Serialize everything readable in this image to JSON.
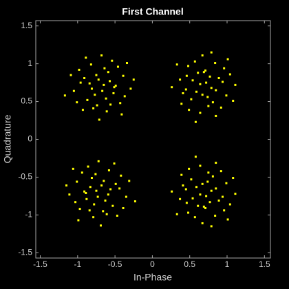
{
  "chart_data": {
    "type": "scatter",
    "title": "First Channel",
    "x_label": "In-Phase",
    "y_label": "Quadrature",
    "color": "#ffff00",
    "grid": false,
    "xlim": [
      -1.56,
      1.58
    ],
    "ylim": [
      -1.57,
      1.57
    ],
    "xticks": [
      -1.5,
      -1,
      -0.5,
      0,
      0.5,
      1,
      1.5
    ],
    "yticks": [
      -1.5,
      -1,
      -0.5,
      0,
      0.5,
      1,
      1.5
    ],
    "x": [
      -0.65,
      -0.91,
      -0.52,
      -0.74,
      -0.39,
      -0.82,
      -0.61,
      -1.05,
      -0.46,
      -0.87,
      -0.68,
      -0.29,
      -0.98,
      -0.57,
      -0.77,
      -0.43,
      -1.09,
      -0.54,
      -0.71,
      -0.34,
      -0.93,
      -0.62,
      -0.84,
      -0.49,
      -1.01,
      -0.59,
      -0.75,
      -0.25,
      -1.17,
      -0.67,
      -0.89,
      -0.41,
      -0.79,
      -0.51,
      -0.96,
      -0.64,
      -0.81,
      -0.37,
      -0.72,
      -0.56,
      0.72,
      0.81,
      0.61,
      0.45,
      0.84,
      0.99,
      0.37,
      0.64,
      0.96,
      0.52,
      1.11,
      0.67,
      0.92,
      0.77,
      0.59,
      0.48,
      0.85,
      1.04,
      0.26,
      1.01,
      0.39,
      0.54,
      0.74,
      0.71,
      0.49,
      0.89,
      0.85,
      0.79,
      0.58,
      0.64,
      1.08,
      0.33,
      0.41,
      0.69,
      0.75,
      0.94,
      0.67,
      0.57,
      0.79,
      0.46,
      -0.75,
      -0.49,
      -0.88,
      -0.66,
      -1.01,
      -0.58,
      -0.79,
      -0.35,
      -0.94,
      -0.53,
      -0.72,
      -1.11,
      -0.42,
      -0.83,
      -0.63,
      -0.97,
      -0.31,
      -0.86,
      -0.69,
      -1.06,
      -0.47,
      -0.78,
      -0.56,
      -0.91,
      -0.39,
      -0.81,
      -0.65,
      -1.15,
      -0.23,
      -0.73,
      -0.51,
      -0.99,
      -0.61,
      -0.89,
      -0.44,
      -0.76,
      -0.59,
      -1.03,
      -0.68,
      -0.84,
      0.72,
      0.81,
      0.61,
      0.45,
      0.84,
      0.99,
      0.37,
      0.64,
      0.96,
      0.52,
      1.11,
      0.67,
      0.92,
      0.77,
      0.59,
      0.48,
      0.85,
      1.04,
      0.26,
      1.01,
      0.39,
      0.54,
      0.74,
      0.71,
      0.49,
      0.89,
      0.85,
      0.79,
      0.58,
      0.64,
      1.08,
      0.33,
      0.41,
      0.69,
      0.75,
      0.94,
      0.67,
      0.57,
      0.79,
      0.46
    ],
    "y": [
      0.72,
      0.81,
      0.61,
      0.45,
      0.84,
      0.99,
      0.37,
      0.64,
      0.96,
      0.52,
      1.11,
      0.67,
      0.92,
      0.77,
      0.59,
      0.48,
      0.85,
      1.04,
      0.26,
      1.01,
      0.39,
      0.54,
      0.74,
      0.71,
      0.49,
      0.89,
      0.85,
      0.79,
      0.58,
      0.64,
      1.08,
      0.33,
      0.41,
      0.69,
      0.75,
      0.94,
      0.67,
      0.57,
      0.79,
      0.46,
      0.75,
      0.49,
      0.88,
      0.66,
      1.01,
      0.58,
      0.79,
      0.35,
      0.94,
      0.53,
      0.72,
      1.11,
      0.42,
      0.83,
      0.63,
      0.97,
      0.31,
      0.86,
      0.69,
      1.06,
      0.47,
      0.78,
      0.56,
      0.91,
      0.39,
      0.81,
      0.65,
      1.15,
      0.23,
      0.73,
      0.51,
      0.99,
      0.61,
      0.89,
      0.44,
      0.76,
      0.59,
      1.03,
      0.68,
      0.84,
      -0.68,
      -0.59,
      -0.79,
      -0.95,
      -0.56,
      -0.41,
      -1.03,
      -0.76,
      -0.44,
      -0.88,
      -0.29,
      -0.73,
      -0.48,
      -0.63,
      -0.81,
      -0.92,
      -0.55,
      -0.36,
      -1.14,
      -0.39,
      -1.01,
      -0.86,
      -0.66,
      -0.69,
      -0.91,
      -0.51,
      -0.55,
      -0.61,
      -0.82,
      -0.76,
      -0.32,
      -1.07,
      -0.99,
      -0.71,
      -0.65,
      -0.46,
      -0.73,
      -0.83,
      -0.61,
      -0.94,
      -0.75,
      -0.49,
      -0.88,
      -0.66,
      -1.01,
      -0.58,
      -0.79,
      -0.35,
      -0.94,
      -0.53,
      -0.72,
      -1.11,
      -0.42,
      -0.83,
      -0.63,
      -0.97,
      -0.31,
      -0.86,
      -0.69,
      -1.06,
      -0.47,
      -0.78,
      -0.56,
      -0.91,
      -0.39,
      -0.81,
      -0.65,
      -1.15,
      -0.23,
      -0.73,
      -0.51,
      -0.99,
      -0.61,
      -0.89,
      -0.44,
      -0.76,
      -0.59,
      -1.03,
      -0.68,
      -0.84
    ]
  }
}
